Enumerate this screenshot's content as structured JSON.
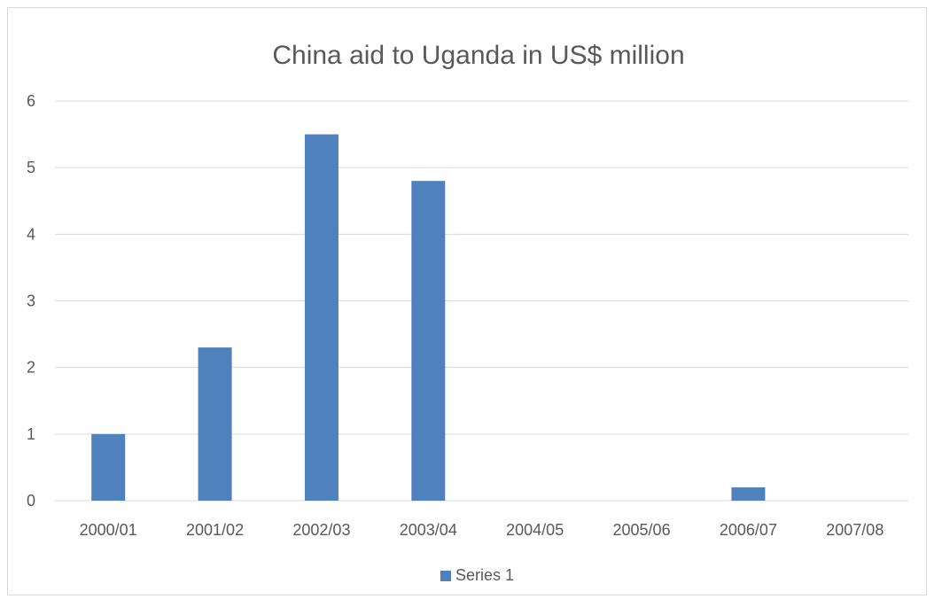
{
  "chart_data": {
    "type": "bar",
    "title": "China aid to Uganda in US$ million",
    "xlabel": "",
    "ylabel": "",
    "categories": [
      "2000/01",
      "2001/02",
      "2002/03",
      "2003/04",
      "2004/05",
      "2005/06",
      "2006/07",
      "2007/08"
    ],
    "series": [
      {
        "name": "Series 1",
        "values": [
          1,
          2.3,
          5.5,
          4.8,
          0,
          0,
          0.2,
          0
        ],
        "color": "#4F81BD"
      }
    ],
    "ylim": [
      0,
      6
    ],
    "yticks": [
      "0",
      "1",
      "2",
      "3",
      "4",
      "5",
      "6"
    ],
    "grid": true,
    "legend": "bottom-center"
  }
}
